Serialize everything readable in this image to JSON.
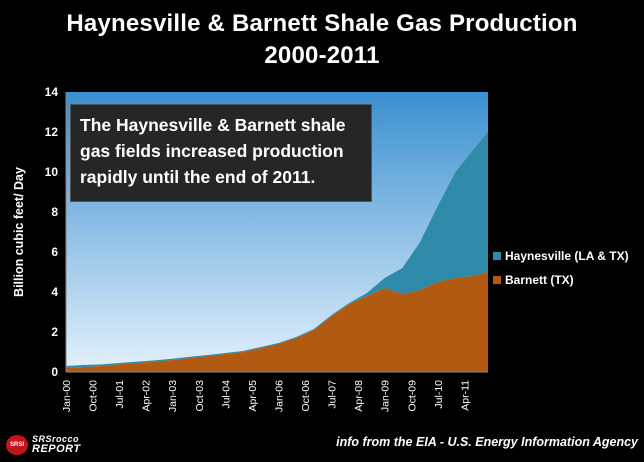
{
  "title_line1": "Haynesville & Barnett Shale Gas Production",
  "title_line2": "2000-2011",
  "annotation": "The Haynesville & Barnett shale\ngas fields increased production\nrapidly until the end of 2011.",
  "source": "info from the EIA - U.S. Energy Information Agency",
  "logo": {
    "badge": "SRSI",
    "line1": "SRSrocco",
    "line2": "REPORT"
  },
  "colors": {
    "barnett": "#b35a12",
    "haynesville": "#2e8aa8",
    "plot_bg_top": "#3a8fd0",
    "plot_bg_bottom": "#e4f1fb",
    "text": "#ffffff"
  },
  "chart_data": {
    "type": "area",
    "stacked": true,
    "title": "Haynesville & Barnett Shale Gas Production 2000-2011",
    "ylabel": "Billion cubic feet/ Day",
    "xlabel": "",
    "ylim": [
      0,
      14
    ],
    "yticks": [
      0,
      2,
      4,
      6,
      8,
      10,
      12,
      14
    ],
    "xlim": [
      "2000-01",
      "2011-12"
    ],
    "xtick_labels": [
      "Jan-00",
      "Oct-00",
      "Jul-01",
      "Apr-02",
      "Jan-03",
      "Oct-03",
      "Jul-04",
      "Apr-05",
      "Jan-06",
      "Oct-06",
      "Jul-07",
      "Apr-08",
      "Jan-09",
      "Oct-09",
      "Jul-10",
      "Apr-11"
    ],
    "grid": false,
    "legend_position": "right",
    "x": [
      "2000-01",
      "2000-07",
      "2001-01",
      "2001-07",
      "2002-01",
      "2002-07",
      "2003-01",
      "2003-07",
      "2004-01",
      "2004-07",
      "2005-01",
      "2005-07",
      "2006-01",
      "2006-07",
      "2007-01",
      "2007-07",
      "2008-01",
      "2008-07",
      "2009-01",
      "2009-07",
      "2010-01",
      "2010-07",
      "2011-01",
      "2011-07",
      "2011-12"
    ],
    "series": [
      {
        "name": "Barnett (TX)",
        "values": [
          0.2,
          0.25,
          0.3,
          0.38,
          0.45,
          0.52,
          0.6,
          0.7,
          0.8,
          0.9,
          1.0,
          1.2,
          1.4,
          1.7,
          2.1,
          2.8,
          3.4,
          3.8,
          4.2,
          3.9,
          4.1,
          4.5,
          4.7,
          4.8,
          5.0
        ]
      },
      {
        "name": "Haynesville (LA & TX)",
        "values": [
          0.1,
          0.1,
          0.08,
          0.07,
          0.07,
          0.06,
          0.06,
          0.06,
          0.05,
          0.05,
          0.05,
          0.05,
          0.05,
          0.05,
          0.05,
          0.05,
          0.05,
          0.15,
          0.5,
          1.3,
          2.4,
          3.8,
          5.3,
          6.3,
          7.0
        ]
      }
    ]
  }
}
